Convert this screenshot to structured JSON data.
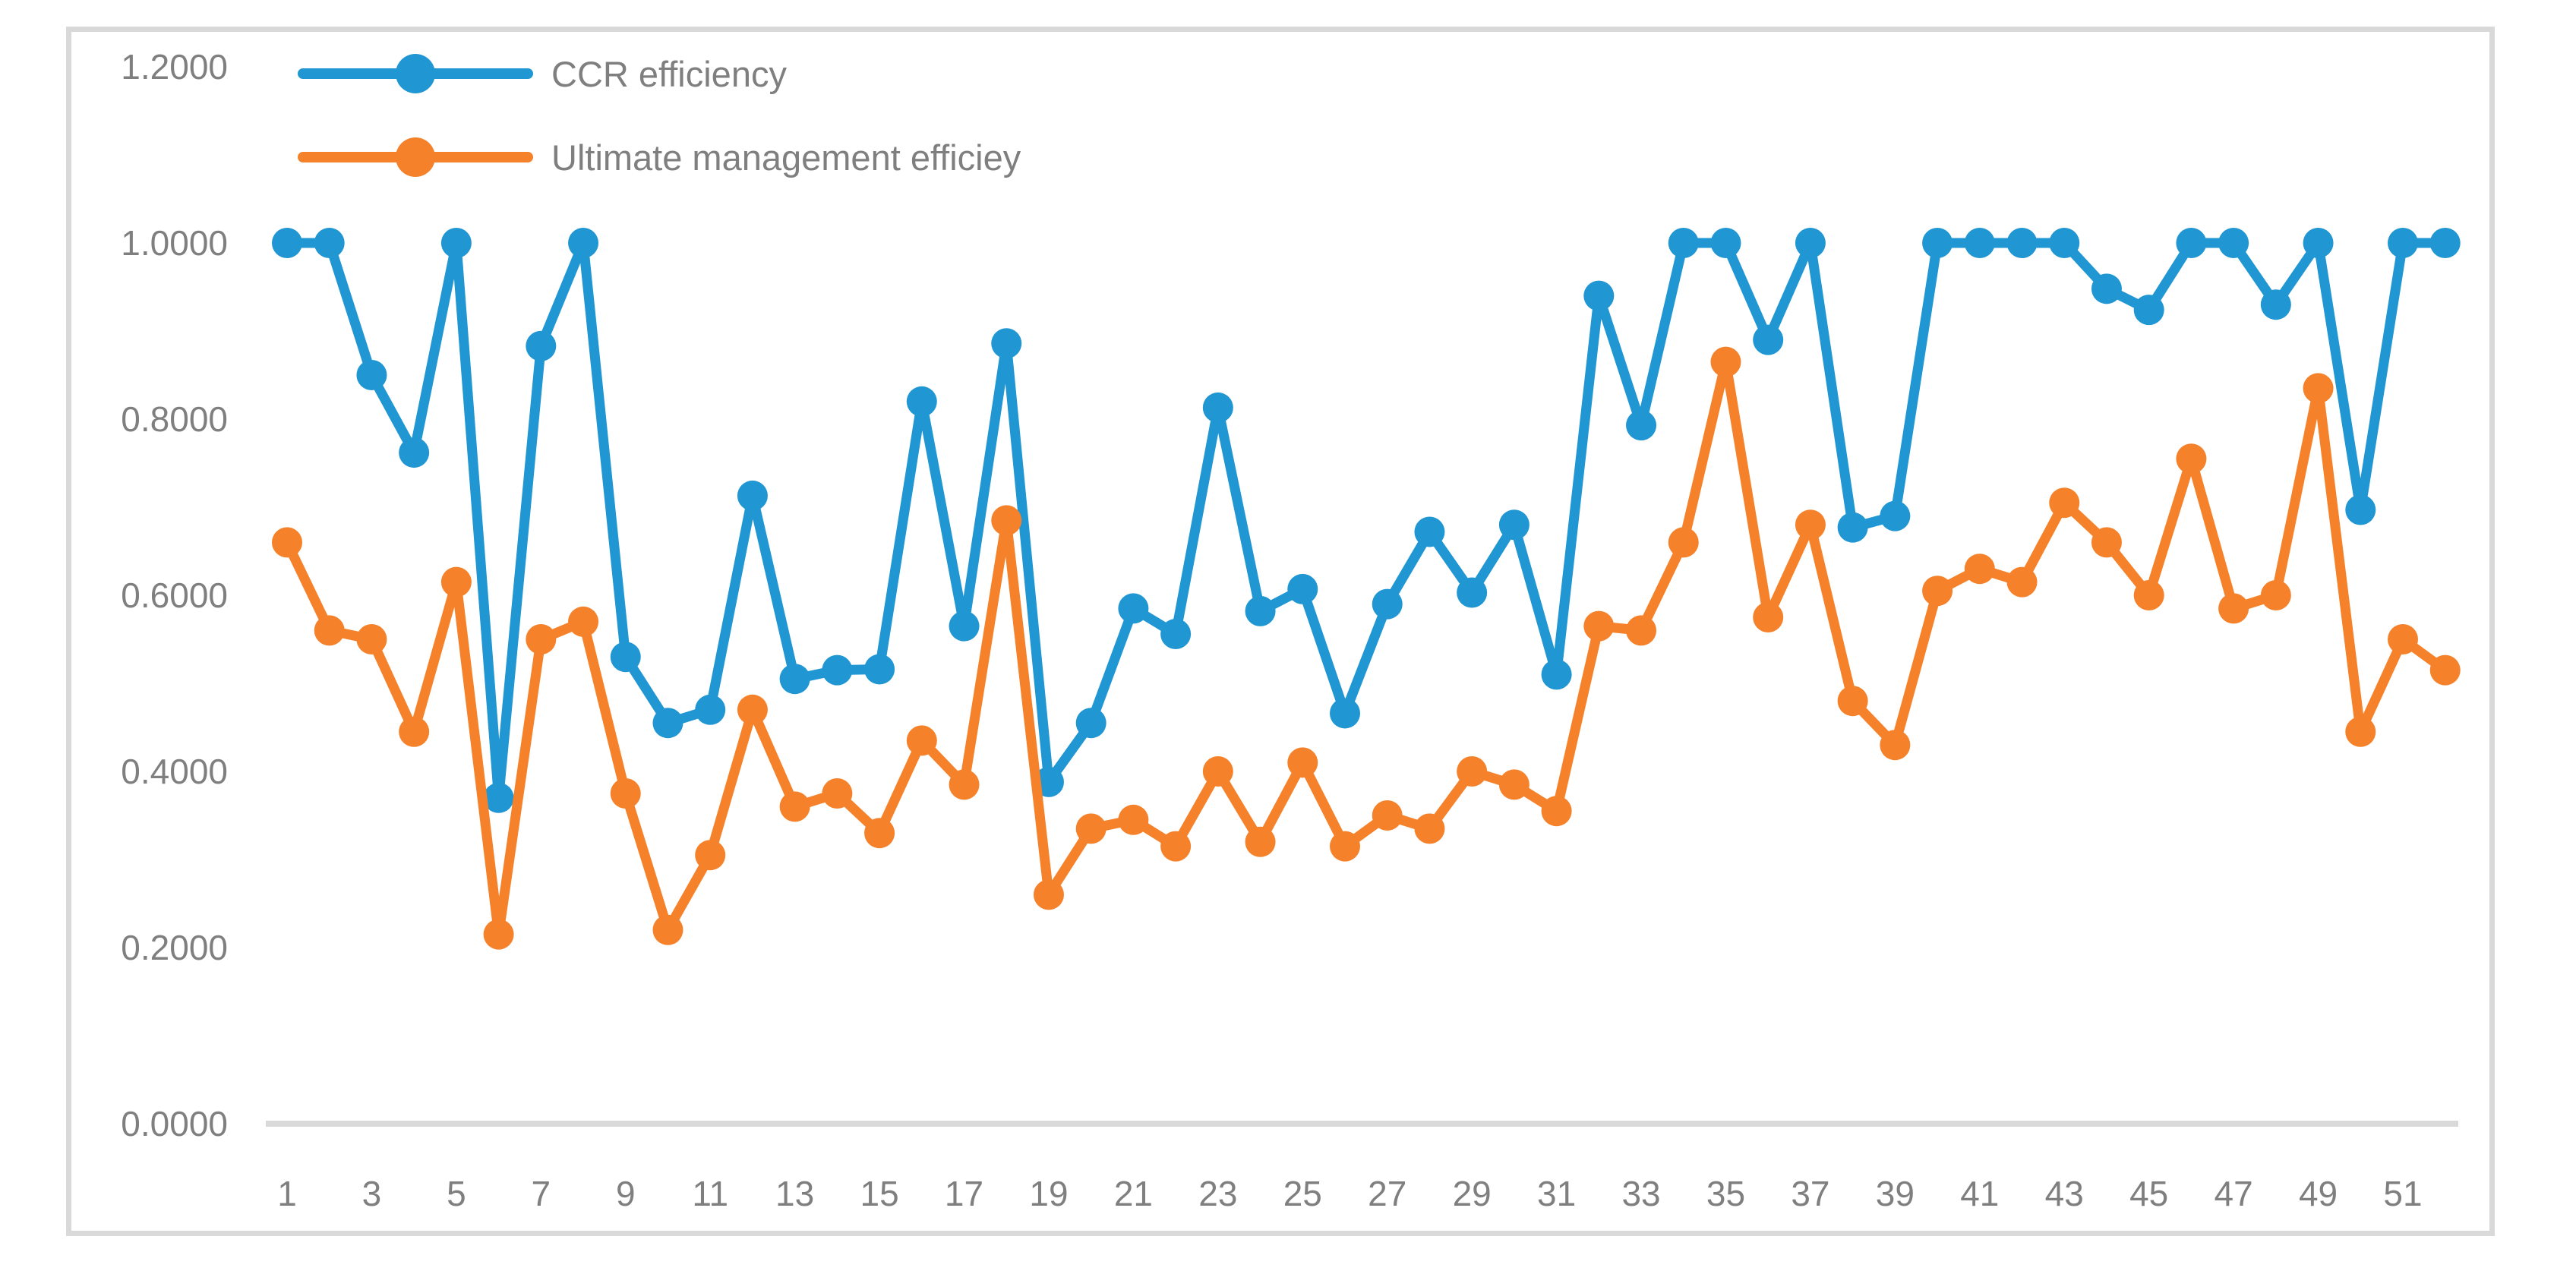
{
  "chart_data": {
    "type": "line",
    "title": "",
    "xlabel": "",
    "ylabel": "",
    "grid": false,
    "legend_position": "top-left-inside",
    "ylim": [
      0.0,
      1.2
    ],
    "y_tick_labels": [
      "1.2000",
      "1.0000",
      "0.8000",
      "0.6000",
      "0.4000",
      "0.2000",
      "0.0000"
    ],
    "y_tick_values": [
      1.2,
      1.0,
      0.8,
      0.6,
      0.4,
      0.2,
      0.0
    ],
    "x_tick_labels": [
      "1",
      "3",
      "5",
      "7",
      "9",
      "11",
      "13",
      "15",
      "17",
      "19",
      "21",
      "23",
      "25",
      "27",
      "29",
      "31",
      "33",
      "35",
      "37",
      "39",
      "41",
      "43",
      "45",
      "47",
      "49",
      "51"
    ],
    "x": [
      1,
      2,
      3,
      4,
      5,
      6,
      7,
      8,
      9,
      10,
      11,
      12,
      13,
      14,
      15,
      16,
      17,
      18,
      19,
      20,
      21,
      22,
      23,
      24,
      25,
      26,
      27,
      28,
      29,
      30,
      31,
      32,
      33,
      34,
      35,
      36,
      37,
      38,
      39,
      40,
      41,
      42,
      43,
      44,
      45,
      46,
      47,
      48,
      49,
      50,
      51,
      52
    ],
    "series": [
      {
        "name": "CCR efficiency",
        "color": "#2096d3",
        "values": [
          1.0,
          1.0,
          0.85,
          0.762,
          1.0,
          0.37,
          0.883,
          1.0,
          0.53,
          0.455,
          0.47,
          0.713,
          0.505,
          0.515,
          0.516,
          0.82,
          0.565,
          0.886,
          0.388,
          0.455,
          0.585,
          0.556,
          0.813,
          0.582,
          0.607,
          0.466,
          0.59,
          0.672,
          0.603,
          0.68,
          0.51,
          0.94,
          0.793,
          1.0,
          1.0,
          0.89,
          1.0,
          0.677,
          0.69,
          1.0,
          1.0,
          1.0,
          1.0,
          0.948,
          0.924,
          1.0,
          1.0,
          0.93,
          1.0,
          0.697,
          1.0,
          1.0
        ]
      },
      {
        "name": "Ultimate management efficiey",
        "color": "#f5822a",
        "values": [
          0.66,
          0.56,
          0.55,
          0.445,
          0.615,
          0.215,
          0.55,
          0.57,
          0.375,
          0.22,
          0.305,
          0.47,
          0.36,
          0.375,
          0.33,
          0.435,
          0.385,
          0.685,
          0.26,
          0.335,
          0.345,
          0.315,
          0.4,
          0.32,
          0.41,
          0.315,
          0.35,
          0.335,
          0.4,
          0.385,
          0.355,
          0.565,
          0.56,
          0.66,
          0.865,
          0.575,
          0.68,
          0.48,
          0.43,
          0.605,
          0.63,
          0.615,
          0.705,
          0.66,
          0.6,
          0.755,
          0.585,
          0.6,
          0.835,
          0.445,
          0.55,
          0.515
        ]
      }
    ]
  },
  "legend": {
    "items": [
      {
        "label": "CCR efficiency",
        "color": "#2096d3"
      },
      {
        "label": "Ultimate management efficiey",
        "color": "#f5822a"
      }
    ]
  },
  "axis_colors": {
    "line": "#d9d9d9",
    "text": "#7f7f7f"
  }
}
